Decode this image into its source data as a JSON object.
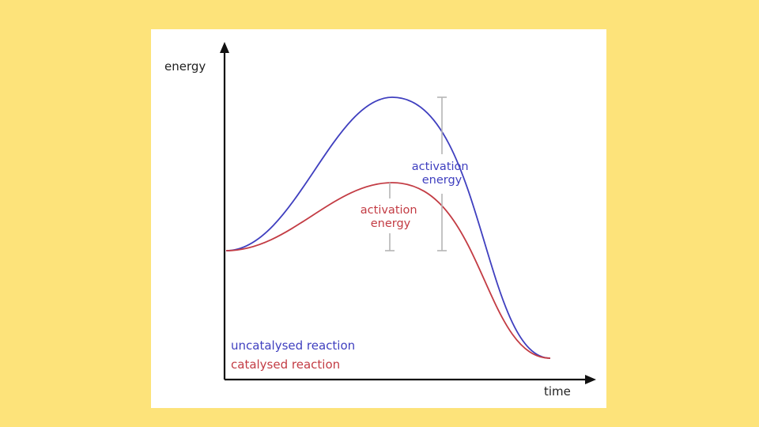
{
  "axes": {
    "y_label": "energy",
    "x_label": "time"
  },
  "series": {
    "uncatalysed": {
      "color": "#3f3fbf",
      "label": "uncatalysed reaction"
    },
    "catalysed": {
      "color": "#c33c44",
      "label": "catalysed reaction"
    }
  },
  "annotations": {
    "uncatalysed_ae": [
      "activation",
      "energy"
    ],
    "catalysed_ae": [
      "activation",
      "energy"
    ],
    "bracket_color": "#b5b5b5",
    "axis_color": "#111111"
  },
  "background": {
    "page": "#fde37a",
    "card": "#ffffff"
  }
}
